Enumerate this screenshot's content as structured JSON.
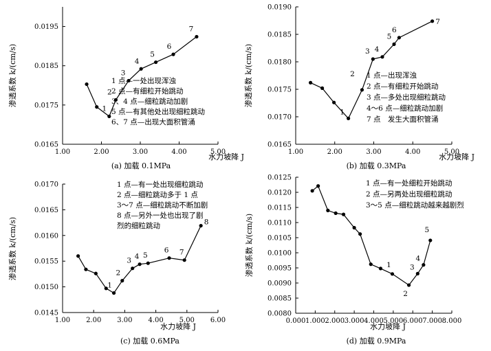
{
  "chart_data": [
    {
      "type": "line",
      "caption": "(a) 加载 0.1MPa",
      "xlabel": "水力坡降 J",
      "ylabel": "渗透系数 k/(cm/s)",
      "xlim": [
        1.0,
        5.0
      ],
      "ylim": [
        0.0165,
        0.02
      ],
      "xticks": [
        1.0,
        2.0,
        3.0,
        4.0,
        5.0
      ],
      "xtick_labels": [
        "1.00",
        "2.00",
        "3.00",
        "4.00",
        "5.00"
      ],
      "yticks": [
        0.0165,
        0.0175,
        0.0185,
        0.0195
      ],
      "ytick_labels": [
        "0.0165",
        "0.0175",
        "0.0185",
        "0.0195"
      ],
      "points": [
        {
          "x": 1.62,
          "y": 0.01803,
          "label": ""
        },
        {
          "x": 1.88,
          "y": 0.01745,
          "label": ""
        },
        {
          "x": 2.2,
          "y": 0.01721,
          "label": "1"
        },
        {
          "x": 2.37,
          "y": 0.01763,
          "label": "2"
        },
        {
          "x": 2.7,
          "y": 0.01812,
          "label": "3"
        },
        {
          "x": 3.02,
          "y": 0.01842,
          "label": "4"
        },
        {
          "x": 3.4,
          "y": 0.01859,
          "label": "5"
        },
        {
          "x": 3.85,
          "y": 0.01879,
          "label": "6"
        },
        {
          "x": 4.45,
          "y": 0.01924,
          "label": "7"
        }
      ],
      "annotations": [
        "1 点—一处出现浑浊",
        "2 点—有细粒开始跳动",
        "3、4 点—细粒跳动加剧",
        "5 点—有其他处出现细粒跳动",
        "6、7 点—出现大面积管涌"
      ]
    },
    {
      "type": "line",
      "caption": "(b) 加载 0.3MPa",
      "xlabel": "水力坡降 J",
      "ylabel": "渗透系数 k/(cm/s)",
      "xlim": [
        1.0,
        5.0
      ],
      "ylim": [
        0.0165,
        0.019
      ],
      "xticks": [
        1.0,
        2.0,
        3.0,
        4.0,
        5.0
      ],
      "xtick_labels": [
        "1.00",
        "2.00",
        "3.00",
        "4.00",
        "5.00"
      ],
      "yticks": [
        0.0165,
        0.017,
        0.0175,
        0.018,
        0.0185,
        0.019
      ],
      "ytick_labels": [
        "0.0165",
        "0.0170",
        "0.0175",
        "0.0180",
        "0.0185",
        "0.0190"
      ],
      "points": [
        {
          "x": 1.38,
          "y": 0.01762,
          "label": ""
        },
        {
          "x": 1.68,
          "y": 0.01752,
          "label": ""
        },
        {
          "x": 1.98,
          "y": 0.01726,
          "label": ""
        },
        {
          "x": 2.35,
          "y": 0.01697,
          "label": "1"
        },
        {
          "x": 2.7,
          "y": 0.01749,
          "label": "2"
        },
        {
          "x": 2.98,
          "y": 0.01805,
          "label": "3"
        },
        {
          "x": 3.22,
          "y": 0.01809,
          "label": "4"
        },
        {
          "x": 3.52,
          "y": 0.01832,
          "label": "5"
        },
        {
          "x": 3.65,
          "y": 0.01844,
          "label": "6"
        },
        {
          "x": 4.5,
          "y": 0.01874,
          "label": "7"
        }
      ],
      "annotations": [
        "1 点—出现浑浊",
        "2 点—有细粒开始跳动",
        "3 点—多处出现细粒跳动",
        "4～6 点—细粒跳动加剧",
        "7 点　发生大面积管涌"
      ]
    },
    {
      "type": "line",
      "caption": "(c) 加载 0.6MPa",
      "xlabel": "水力坡降 J",
      "ylabel": "渗透系数 k/(cm/s)",
      "xlim": [
        1.0,
        6.0
      ],
      "ylim": [
        0.0145,
        0.017
      ],
      "xticks": [
        1.0,
        2.0,
        3.0,
        4.0,
        5.0,
        6.0
      ],
      "xtick_labels": [
        "1.00",
        "2.00",
        "3.00",
        "4.00",
        "5.00",
        "6.00"
      ],
      "yticks": [
        0.0145,
        0.015,
        0.0155,
        0.016,
        0.0165,
        0.017
      ],
      "ytick_labels": [
        "0.0145",
        "0.0150",
        "0.0155",
        "0.0160",
        "0.0165",
        "0.0170"
      ],
      "points": [
        {
          "x": 1.5,
          "y": 0.0156,
          "label": ""
        },
        {
          "x": 1.75,
          "y": 0.01534,
          "label": ""
        },
        {
          "x": 2.07,
          "y": 0.01526,
          "label": ""
        },
        {
          "x": 2.4,
          "y": 0.01497,
          "label": ""
        },
        {
          "x": 2.65,
          "y": 0.01488,
          "label": "1"
        },
        {
          "x": 2.92,
          "y": 0.01512,
          "label": "2"
        },
        {
          "x": 3.25,
          "y": 0.01536,
          "label": "3"
        },
        {
          "x": 3.48,
          "y": 0.01544,
          "label": "4"
        },
        {
          "x": 3.75,
          "y": 0.01546,
          "label": "5"
        },
        {
          "x": 4.43,
          "y": 0.01556,
          "label": "6"
        },
        {
          "x": 4.92,
          "y": 0.01552,
          "label": "7"
        },
        {
          "x": 5.45,
          "y": 0.01619,
          "label": "8"
        }
      ],
      "annotations": [
        "1 点—有一处出现细粒跳动",
        "2 点—细粒跳动多于 1 点",
        "3～7 点—细粒跳动不断加剧",
        "8 点—另外一处也出现了剧",
        "烈的细粒跳动"
      ]
    },
    {
      "type": "line",
      "caption": "(d) 加载 0.9MPa",
      "xlabel": "水力坡降 J",
      "ylabel": "渗透系数 k/(cm/s)",
      "xlim": [
        0.0,
        8.0
      ],
      "ylim": [
        0.008,
        0.0125
      ],
      "xticks": [
        0.0,
        1.0,
        2.0,
        3.0,
        4.0,
        5.0,
        6.0,
        7.0,
        8.0
      ],
      "xtick_labels": [
        "0.000",
        "1.000",
        "2.000",
        "3.000",
        "4.000",
        "5.000",
        "6.000",
        "7.000",
        "8.000"
      ],
      "yticks": [
        0.008,
        0.0085,
        0.009,
        0.0095,
        0.01,
        0.0105,
        0.011,
        0.0115,
        0.012,
        0.0125
      ],
      "ytick_labels": [
        "0.0080",
        "0.0085",
        "0.0090",
        "0.0095",
        "0.0100",
        "0.0105",
        "0.0110",
        "0.0115",
        "0.0120",
        "0.0125"
      ],
      "points": [
        {
          "x": 0.85,
          "y": 0.01205,
          "label": ""
        },
        {
          "x": 1.15,
          "y": 0.01221,
          "label": ""
        },
        {
          "x": 1.65,
          "y": 0.0114,
          "label": ""
        },
        {
          "x": 2.05,
          "y": 0.01131,
          "label": ""
        },
        {
          "x": 2.45,
          "y": 0.01127,
          "label": ""
        },
        {
          "x": 3.0,
          "y": 0.01083,
          "label": ""
        },
        {
          "x": 3.3,
          "y": 0.01062,
          "label": ""
        },
        {
          "x": 3.85,
          "y": 0.00962,
          "label": ""
        },
        {
          "x": 4.35,
          "y": 0.00948,
          "label": ""
        },
        {
          "x": 4.95,
          "y": 0.0093,
          "label": "1"
        },
        {
          "x": 5.8,
          "y": 0.00893,
          "label": "2"
        },
        {
          "x": 6.25,
          "y": 0.00931,
          "label": "3"
        },
        {
          "x": 6.55,
          "y": 0.0096,
          "label": "4"
        },
        {
          "x": 6.9,
          "y": 0.01041,
          "label": "5"
        }
      ],
      "annotations": [
        "1 点—有一处细粒开始跳动",
        "2 点—另两处出现细粒跳动",
        "3～5 点—细粒跳动越来越剧烈"
      ]
    }
  ]
}
